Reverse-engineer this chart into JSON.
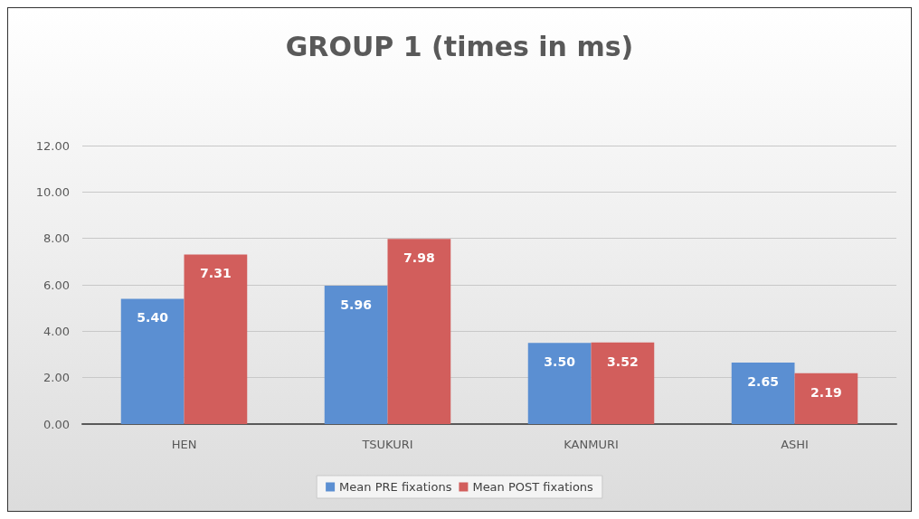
{
  "chart_data": {
    "type": "bar",
    "title": "GROUP 1 (times in ms)",
    "categories": [
      "HEN",
      "TSUKURI",
      "KANMURI",
      "ASHI"
    ],
    "series": [
      {
        "name": "Mean PRE fixations",
        "color": "#5b8fd2",
        "values": [
          5.4,
          5.96,
          3.5,
          2.65
        ],
        "value_labels": [
          "5.40",
          "5.96",
          "3.50",
          "2.65"
        ]
      },
      {
        "name": "Mean POST fixations",
        "color": "#d25e5c",
        "values": [
          7.31,
          7.98,
          3.52,
          2.19
        ],
        "value_labels": [
          "7.31",
          "7.98",
          "3.52",
          "2.19"
        ]
      }
    ],
    "ylim": [
      0,
      12
    ],
    "yticks": [
      {
        "value": 0,
        "label": "0.00"
      },
      {
        "value": 2,
        "label": "2.00"
      },
      {
        "value": 4,
        "label": "4.00"
      },
      {
        "value": 6,
        "label": "6.00"
      },
      {
        "value": 8,
        "label": "8.00"
      },
      {
        "value": 10,
        "label": "10.00"
      },
      {
        "value": 12,
        "label": "12.00"
      }
    ],
    "grid": "y",
    "legend": "bottom"
  }
}
